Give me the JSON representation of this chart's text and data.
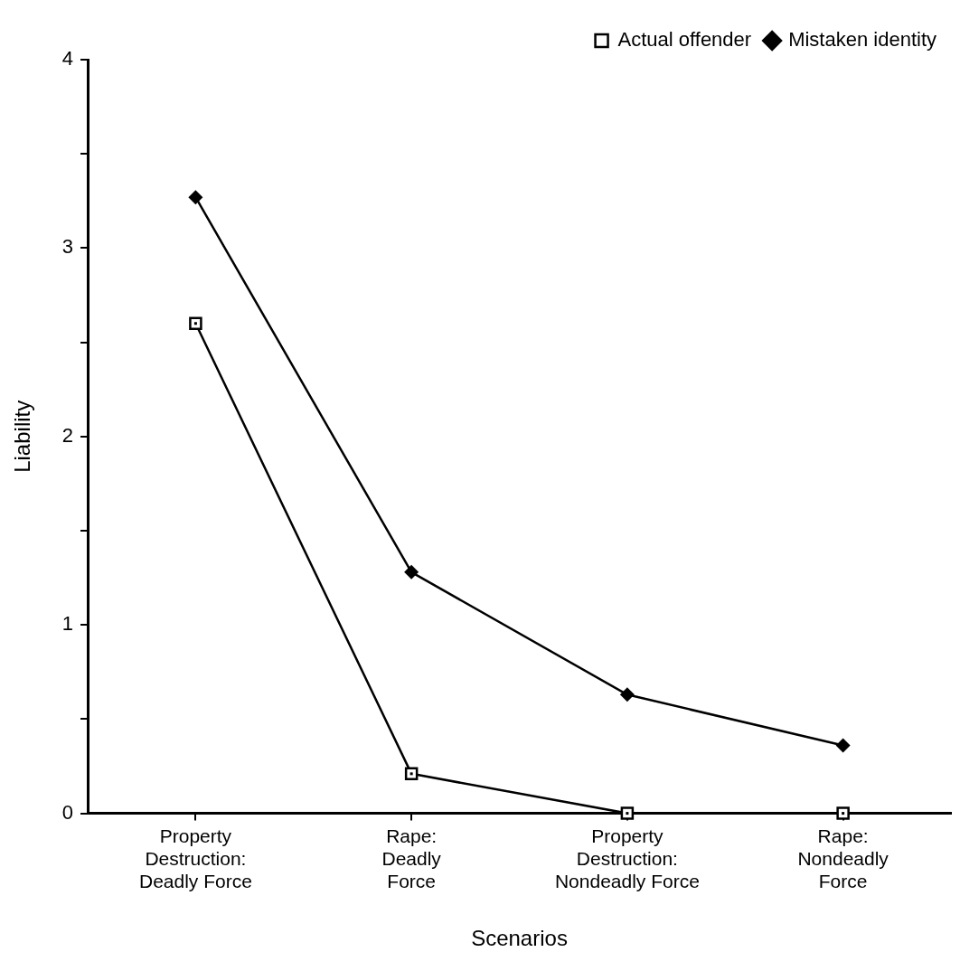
{
  "chart_data": {
    "type": "line",
    "xlabel": "Scenarios",
    "ylabel": "Liability",
    "categories": [
      "Property\nDestruction:\nDeadly Force",
      "Rape:\nDeadly\nForce",
      "Property\nDestruction:\nNondeadly Force",
      "Rape:\nNondeadly\nForce"
    ],
    "series": [
      {
        "name": "Actual offender",
        "color": "#000000",
        "marker": "square",
        "values": [
          2.6,
          0.21,
          0,
          0
        ]
      },
      {
        "name": "Mistaken identity",
        "color": "#000000",
        "marker": "diamond",
        "values": [
          3.27,
          1.28,
          0.63,
          0.36
        ]
      }
    ],
    "ylim": [
      0,
      4
    ],
    "yticks": [
      0,
      {
        "value": 0.5,
        "label": null
      },
      1,
      {
        "value": 1.5,
        "label": null
      },
      2,
      {
        "value": 2.5,
        "label": null
      },
      3,
      {
        "value": 3.5,
        "label": null
      },
      4
    ],
    "grid": false,
    "legend": "top right",
    "line_style": "solid"
  }
}
